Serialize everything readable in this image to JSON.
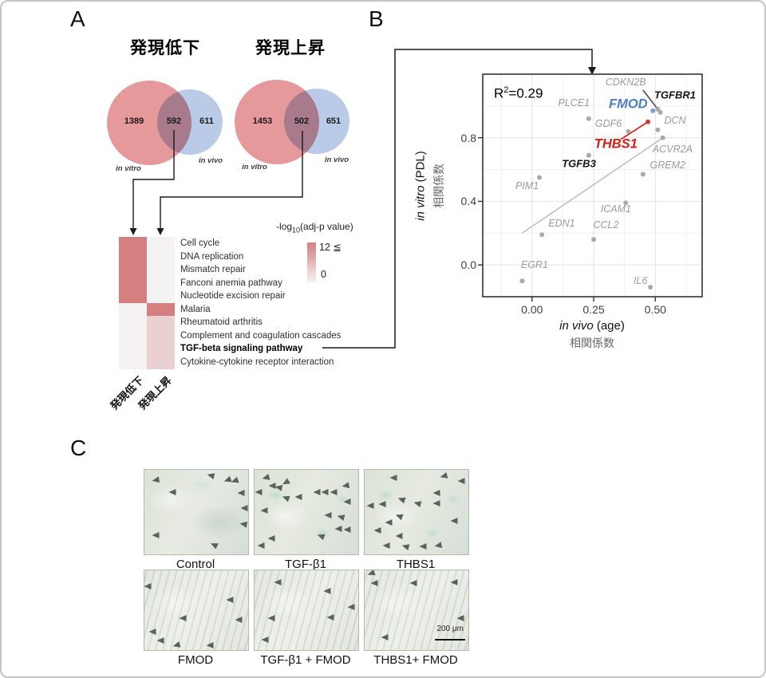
{
  "figure": {
    "panel_a_label": "A",
    "panel_b_label": "B",
    "panel_c_label": "C"
  },
  "chart_data": [
    {
      "id": "venn_downregulated",
      "type": "venn",
      "title": "発現低下",
      "left_set_label": "in vitro",
      "right_set_label": "in vivo",
      "left_only": "1389",
      "overlap": "592",
      "right_only": "611",
      "left_color": "#e6999b",
      "right_color": "#b9cbe6"
    },
    {
      "id": "venn_upregulated",
      "type": "venn",
      "title": "発現上昇",
      "left_set_label": "in vitro",
      "right_set_label": "in vivo",
      "left_only": "1453",
      "overlap": "502",
      "right_only": "651",
      "left_color": "#e6999b",
      "right_color": "#b9cbe6"
    },
    {
      "id": "kegg_heatmap",
      "type": "heatmap",
      "columns": [
        "発現低下",
        "発現上昇"
      ],
      "rows": [
        "Cell cycle",
        "DNA replication",
        "Mismatch repair",
        "Fanconi anemia pathway",
        "Nucleotide excision repair",
        "Malaria",
        "Rheumatoid arthritis",
        "Complement and coagulation cascades",
        "TGF-beta signaling pathway",
        "Cytokine-cytokine receptor interaction"
      ],
      "values": [
        [
          12,
          0
        ],
        [
          12,
          0
        ],
        [
          12,
          0
        ],
        [
          12,
          0
        ],
        [
          12,
          0
        ],
        [
          0,
          12
        ],
        [
          0,
          3
        ],
        [
          0,
          3
        ],
        [
          0,
          3
        ],
        [
          0,
          3
        ]
      ],
      "bold_row_index": 8,
      "legend": {
        "title_prefix": "-log",
        "title_sub": "10",
        "title_suffix": "(adj-p value)",
        "max_label": "12 ≦",
        "min_label": "0",
        "max_color": "#d47f80",
        "mid_color": "#ebd0d2",
        "min_color": "#f4f2f2"
      }
    },
    {
      "id": "correlation_scatter",
      "type": "scatter",
      "r2_prefix": "R",
      "r2_sup": "2",
      "r2_suffix": "=0.29",
      "x_axis": {
        "title_italic": "in vivo",
        "title_rest": " (age)",
        "title_jp": "相関係数",
        "ticks": [
          {
            "label": "0.00",
            "value": 0
          },
          {
            "label": "0.25",
            "value": 0.25
          },
          {
            "label": "0.50",
            "value": 0.5
          }
        ],
        "range": [
          -0.2,
          0.69
        ],
        "minor_gridlines": [
          -0.125,
          0.125,
          0.375,
          0.625
        ]
      },
      "y_axis": {
        "title_italic": "in vitro",
        "title_rest": " (PDL)",
        "title_jp": "相関係数",
        "ticks": [
          {
            "label": "0.0",
            "value": 0
          },
          {
            "label": "0.4",
            "value": 0.4
          },
          {
            "label": "0.8",
            "value": 0.8
          }
        ],
        "range": [
          -0.2,
          1.2
        ],
        "minor_gridlines": [
          0.2,
          0.6,
          1.0
        ]
      },
      "regression_line": {
        "x1": -0.04,
        "y1": 0.2,
        "x2": 0.53,
        "y2": 0.8
      },
      "point_colors": {
        "gray": "#a9a9a9",
        "blue": "#78a2d4",
        "red": "#cd3a35"
      },
      "points": [
        {
          "label": "CDKN2B",
          "x": 0.51,
          "y": 0.98,
          "style": "gray",
          "label_x": 0.38,
          "label_y": 1.15,
          "leader_x": 0.45,
          "leader_y": 1.1
        },
        {
          "label": "TGFBR1",
          "x": 0.52,
          "y": 0.96,
          "style": "black",
          "label_x": 0.58,
          "label_y": 1.07
        },
        {
          "label": "FMOD",
          "x": 0.49,
          "y": 0.97,
          "style": "blue",
          "label_x": 0.39,
          "label_y": 1.01
        },
        {
          "label": "PLCE1",
          "x": 0.23,
          "y": 0.92,
          "style": "gray",
          "label_x": 0.17,
          "label_y": 1.02
        },
        {
          "label": "GDF6",
          "x": 0.39,
          "y": 0.84,
          "style": "gray",
          "label_x": 0.31,
          "label_y": 0.89
        },
        {
          "label": "DCN",
          "x": 0.51,
          "y": 0.85,
          "style": "gray",
          "label_x": 0.58,
          "label_y": 0.91
        },
        {
          "label": "THBS1",
          "x": 0.47,
          "y": 0.9,
          "style": "red",
          "label_x": 0.34,
          "label_y": 0.76,
          "leader_x": 0.36,
          "leader_y": 0.79
        },
        {
          "label": "ACVR2A",
          "x": 0.53,
          "y": 0.8,
          "style": "gray",
          "label_x": 0.57,
          "label_y": 0.73
        },
        {
          "label": "TGFB3",
          "x": 0.23,
          "y": 0.69,
          "style": "black",
          "label_x": 0.19,
          "label_y": 0.64
        },
        {
          "label": "GREM2",
          "x": 0.45,
          "y": 0.57,
          "style": "gray",
          "label_x": 0.55,
          "label_y": 0.63
        },
        {
          "label": "PIM1",
          "x": 0.03,
          "y": 0.55,
          "style": "gray",
          "label_x": -0.02,
          "label_y": 0.5
        },
        {
          "label": "ICAM1",
          "x": 0.38,
          "y": 0.39,
          "style": "gray",
          "label_x": 0.34,
          "label_y": 0.35
        },
        {
          "label": "EDN1",
          "x": 0.04,
          "y": 0.19,
          "style": "gray",
          "label_x": 0.12,
          "label_y": 0.26
        },
        {
          "label": "CCL2",
          "x": 0.25,
          "y": 0.16,
          "style": "gray",
          "label_x": 0.3,
          "label_y": 0.25
        },
        {
          "label": "EGR1",
          "x": -0.04,
          "y": -0.1,
          "style": "gray",
          "label_x": 0.01,
          "label_y": 0.0
        },
        {
          "label": "IL6",
          "x": 0.48,
          "y": -0.14,
          "style": "gray",
          "label_x": 0.44,
          "label_y": -0.1
        }
      ]
    }
  ],
  "micrographs": {
    "panels": [
      {
        "label": "Control",
        "stained": false,
        "arrows": [
          [
            11,
            12,
            -10
          ],
          [
            27,
            26,
            0
          ],
          [
            64,
            7,
            15
          ],
          [
            80,
            12,
            -20
          ],
          [
            87,
            13,
            -20
          ],
          [
            93,
            27,
            0
          ],
          [
            96,
            45,
            0
          ],
          [
            95,
            64,
            10
          ],
          [
            11,
            77,
            0
          ],
          [
            67,
            89,
            25
          ]
        ]
      },
      {
        "label": "TGF-β1",
        "stained": true,
        "arrows": [
          [
            11,
            9,
            -15
          ],
          [
            17,
            19,
            0
          ],
          [
            23,
            21,
            10
          ],
          [
            30,
            15,
            -30
          ],
          [
            4,
            26,
            0
          ],
          [
            30,
            33,
            20
          ],
          [
            42,
            32,
            0
          ],
          [
            60,
            26,
            0
          ],
          [
            68,
            26,
            0
          ],
          [
            76,
            26,
            0
          ],
          [
            88,
            19,
            -10
          ],
          [
            89,
            38,
            0
          ],
          [
            9,
            48,
            0
          ],
          [
            71,
            54,
            0
          ],
          [
            83,
            56,
            15
          ],
          [
            81,
            70,
            0
          ],
          [
            89,
            71,
            0
          ],
          [
            64,
            78,
            20
          ],
          [
            16,
            81,
            0
          ],
          [
            6,
            90,
            0
          ]
        ]
      },
      {
        "label": "THBS1",
        "stained": true,
        "arrows": [
          [
            28,
            9,
            0
          ],
          [
            76,
            8,
            -15
          ],
          [
            93,
            13,
            0
          ],
          [
            69,
            27,
            0
          ],
          [
            35,
            35,
            20
          ],
          [
            5,
            42,
            0
          ],
          [
            17,
            41,
            0
          ],
          [
            51,
            40,
            15
          ],
          [
            69,
            40,
            0
          ],
          [
            33,
            55,
            20
          ],
          [
            86,
            60,
            0
          ],
          [
            23,
            62,
            0
          ],
          [
            12,
            72,
            0
          ],
          [
            33,
            78,
            0
          ],
          [
            21,
            90,
            0
          ],
          [
            39,
            91,
            15
          ],
          [
            56,
            91,
            0
          ],
          [
            71,
            90,
            -10
          ]
        ]
      },
      {
        "label": "FMOD",
        "stained": false,
        "arrows": [
          [
            3,
            20,
            0
          ],
          [
            82,
            37,
            0
          ],
          [
            37,
            60,
            0
          ],
          [
            91,
            62,
            0
          ],
          [
            8,
            77,
            0
          ],
          [
            15,
            88,
            0
          ],
          [
            31,
            94,
            -15
          ],
          [
            63,
            94,
            0
          ]
        ]
      },
      {
        "label": "TGF-β1 + FMOD",
        "stained": false,
        "arrows": [
          [
            22,
            15,
            0
          ],
          [
            70,
            26,
            0
          ],
          [
            93,
            46,
            0
          ],
          [
            16,
            60,
            0
          ],
          [
            73,
            59,
            0
          ],
          [
            10,
            87,
            0
          ]
        ]
      },
      {
        "label": "THBS1+ FMOD",
        "stained": false,
        "scalebar_label": "200 μm",
        "arrows": [
          [
            6,
            4,
            -20
          ],
          [
            9,
            16,
            0
          ],
          [
            47,
            16,
            0
          ],
          [
            86,
            15,
            0
          ],
          [
            92,
            60,
            0
          ],
          [
            19,
            84,
            0
          ]
        ]
      }
    ]
  }
}
